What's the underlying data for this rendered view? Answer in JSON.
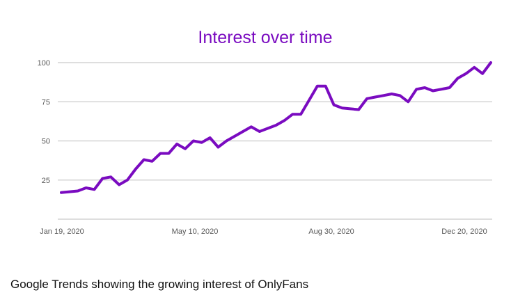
{
  "chart_data": {
    "type": "line",
    "title": "Interest over time",
    "xlabel": "",
    "ylabel": "",
    "ylim": [
      0,
      100
    ],
    "yticks": [
      25,
      50,
      75,
      100
    ],
    "ytick_labels": [
      "25",
      "50",
      "75",
      "100"
    ],
    "xtick_labels": [
      "Jan 19, 2020",
      "May 10, 2020",
      "Aug 30, 2020",
      "Dec 20, 2020"
    ],
    "grid": true,
    "series": [
      {
        "color": "#7A0BC0",
        "values": [
          17,
          17.5,
          18,
          20,
          19,
          26,
          27,
          22,
          25,
          32,
          38,
          37,
          42,
          42,
          48,
          45,
          50,
          49,
          52,
          46,
          50,
          53,
          56,
          59,
          56,
          58,
          60,
          63,
          67,
          67,
          76,
          85,
          85,
          73,
          71,
          70.5,
          70,
          77,
          78,
          79,
          80,
          79,
          75,
          83,
          84,
          82,
          83,
          84,
          90,
          93,
          97,
          93,
          100
        ]
      }
    ]
  },
  "caption": "Google Trends showing the growing interest of OnlyFans",
  "colors": {
    "accent": "#7A0BC0",
    "grid": "#d4d4d4",
    "tick_text": "#555555"
  }
}
